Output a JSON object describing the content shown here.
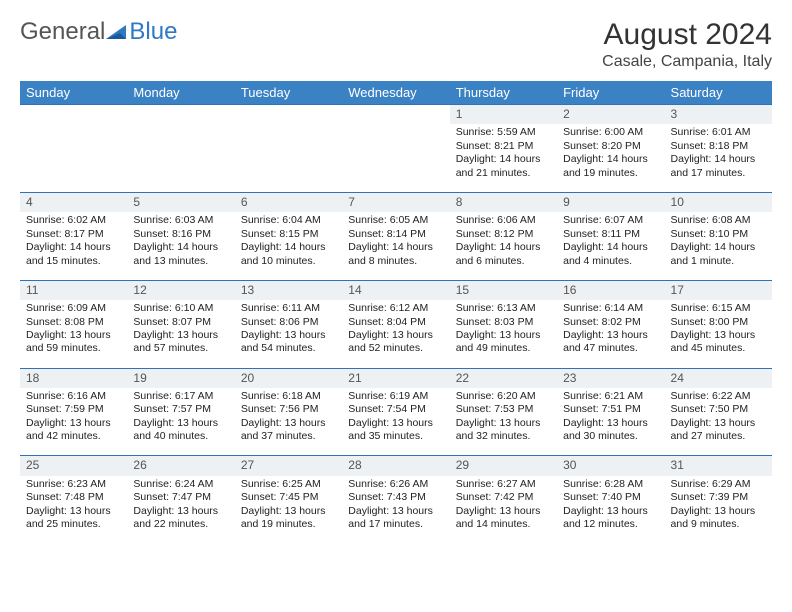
{
  "logo": {
    "part1": "General",
    "part2": "Blue"
  },
  "title": "August 2024",
  "location": "Casale, Campania, Italy",
  "colors": {
    "header_bg": "#3b82c4",
    "header_text": "#ffffff",
    "row_sep": "#2f72b6",
    "daynum_bg": "#eef1f4",
    "logo_gray": "#555555",
    "logo_blue": "#2f78c4",
    "text": "#222222",
    "bg": "#ffffff"
  },
  "weekdays": [
    "Sunday",
    "Monday",
    "Tuesday",
    "Wednesday",
    "Thursday",
    "Friday",
    "Saturday"
  ],
  "weeks": [
    [
      null,
      null,
      null,
      null,
      {
        "d": "1",
        "sr": "5:59 AM",
        "ss": "8:21 PM",
        "dl": "14 hours and 21 minutes."
      },
      {
        "d": "2",
        "sr": "6:00 AM",
        "ss": "8:20 PM",
        "dl": "14 hours and 19 minutes."
      },
      {
        "d": "3",
        "sr": "6:01 AM",
        "ss": "8:18 PM",
        "dl": "14 hours and 17 minutes."
      }
    ],
    [
      {
        "d": "4",
        "sr": "6:02 AM",
        "ss": "8:17 PM",
        "dl": "14 hours and 15 minutes."
      },
      {
        "d": "5",
        "sr": "6:03 AM",
        "ss": "8:16 PM",
        "dl": "14 hours and 13 minutes."
      },
      {
        "d": "6",
        "sr": "6:04 AM",
        "ss": "8:15 PM",
        "dl": "14 hours and 10 minutes."
      },
      {
        "d": "7",
        "sr": "6:05 AM",
        "ss": "8:14 PM",
        "dl": "14 hours and 8 minutes."
      },
      {
        "d": "8",
        "sr": "6:06 AM",
        "ss": "8:12 PM",
        "dl": "14 hours and 6 minutes."
      },
      {
        "d": "9",
        "sr": "6:07 AM",
        "ss": "8:11 PM",
        "dl": "14 hours and 4 minutes."
      },
      {
        "d": "10",
        "sr": "6:08 AM",
        "ss": "8:10 PM",
        "dl": "14 hours and 1 minute."
      }
    ],
    [
      {
        "d": "11",
        "sr": "6:09 AM",
        "ss": "8:08 PM",
        "dl": "13 hours and 59 minutes."
      },
      {
        "d": "12",
        "sr": "6:10 AM",
        "ss": "8:07 PM",
        "dl": "13 hours and 57 minutes."
      },
      {
        "d": "13",
        "sr": "6:11 AM",
        "ss": "8:06 PM",
        "dl": "13 hours and 54 minutes."
      },
      {
        "d": "14",
        "sr": "6:12 AM",
        "ss": "8:04 PM",
        "dl": "13 hours and 52 minutes."
      },
      {
        "d": "15",
        "sr": "6:13 AM",
        "ss": "8:03 PM",
        "dl": "13 hours and 49 minutes."
      },
      {
        "d": "16",
        "sr": "6:14 AM",
        "ss": "8:02 PM",
        "dl": "13 hours and 47 minutes."
      },
      {
        "d": "17",
        "sr": "6:15 AM",
        "ss": "8:00 PM",
        "dl": "13 hours and 45 minutes."
      }
    ],
    [
      {
        "d": "18",
        "sr": "6:16 AM",
        "ss": "7:59 PM",
        "dl": "13 hours and 42 minutes."
      },
      {
        "d": "19",
        "sr": "6:17 AM",
        "ss": "7:57 PM",
        "dl": "13 hours and 40 minutes."
      },
      {
        "d": "20",
        "sr": "6:18 AM",
        "ss": "7:56 PM",
        "dl": "13 hours and 37 minutes."
      },
      {
        "d": "21",
        "sr": "6:19 AM",
        "ss": "7:54 PM",
        "dl": "13 hours and 35 minutes."
      },
      {
        "d": "22",
        "sr": "6:20 AM",
        "ss": "7:53 PM",
        "dl": "13 hours and 32 minutes."
      },
      {
        "d": "23",
        "sr": "6:21 AM",
        "ss": "7:51 PM",
        "dl": "13 hours and 30 minutes."
      },
      {
        "d": "24",
        "sr": "6:22 AM",
        "ss": "7:50 PM",
        "dl": "13 hours and 27 minutes."
      }
    ],
    [
      {
        "d": "25",
        "sr": "6:23 AM",
        "ss": "7:48 PM",
        "dl": "13 hours and 25 minutes."
      },
      {
        "d": "26",
        "sr": "6:24 AM",
        "ss": "7:47 PM",
        "dl": "13 hours and 22 minutes."
      },
      {
        "d": "27",
        "sr": "6:25 AM",
        "ss": "7:45 PM",
        "dl": "13 hours and 19 minutes."
      },
      {
        "d": "28",
        "sr": "6:26 AM",
        "ss": "7:43 PM",
        "dl": "13 hours and 17 minutes."
      },
      {
        "d": "29",
        "sr": "6:27 AM",
        "ss": "7:42 PM",
        "dl": "13 hours and 14 minutes."
      },
      {
        "d": "30",
        "sr": "6:28 AM",
        "ss": "7:40 PM",
        "dl": "13 hours and 12 minutes."
      },
      {
        "d": "31",
        "sr": "6:29 AM",
        "ss": "7:39 PM",
        "dl": "13 hours and 9 minutes."
      }
    ]
  ],
  "labels": {
    "sunrise": "Sunrise: ",
    "sunset": "Sunset: ",
    "daylight": "Daylight: "
  }
}
